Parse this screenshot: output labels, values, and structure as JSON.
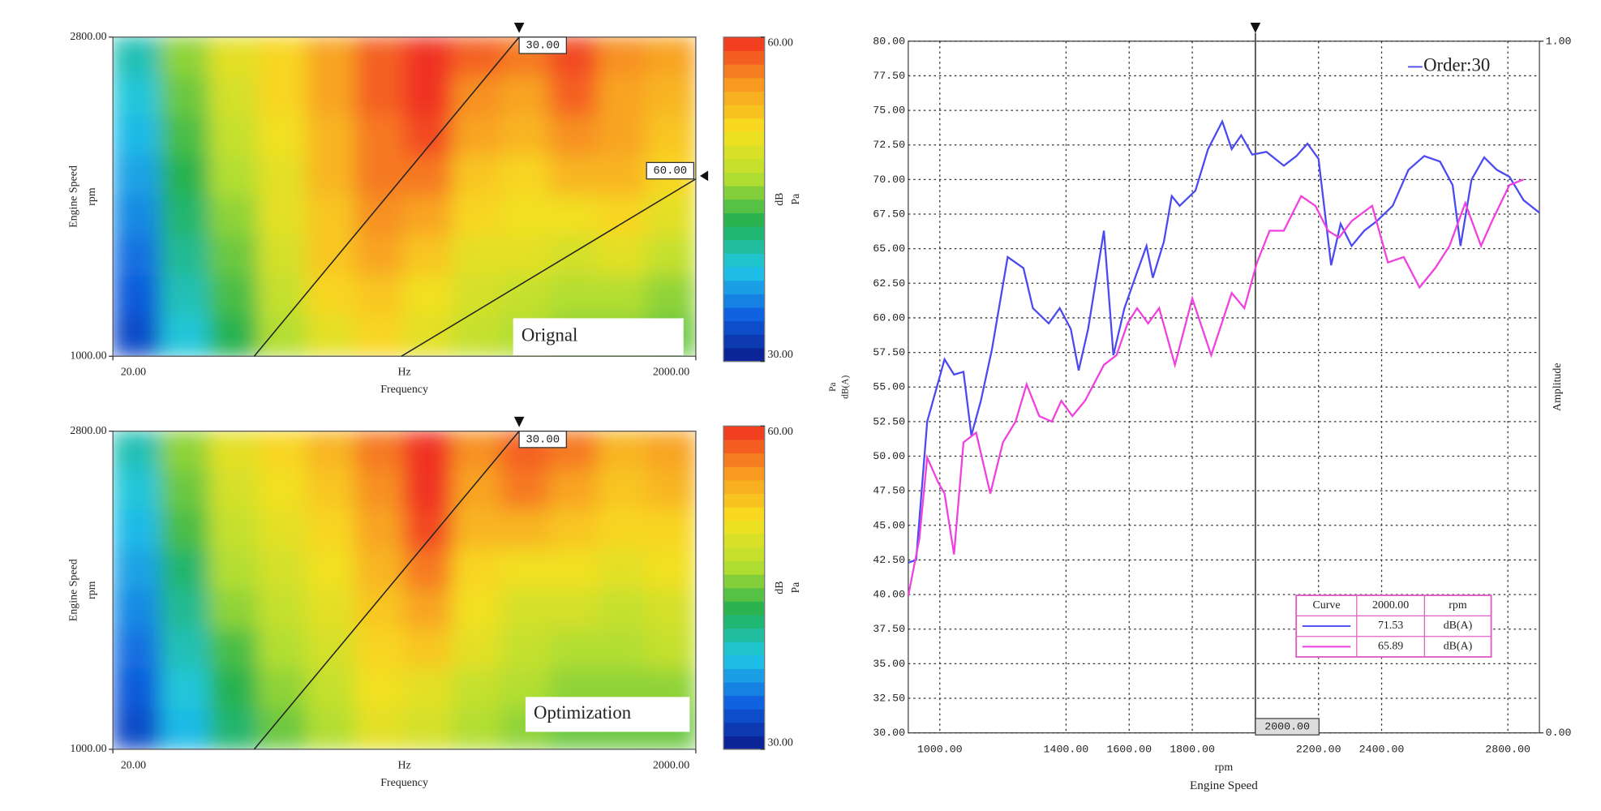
{
  "chart_data": [
    {
      "type": "heatmap",
      "label": "Orignal",
      "xlabel": "Frequency",
      "xunit": "Hz",
      "ylabel": "Engine Speed",
      "yunit": "rpm",
      "xlim": [
        20,
        2000
      ],
      "xticks": [
        {
          "value": 20,
          "label": "20.00"
        },
        {
          "value": 2000,
          "label": "2000.00"
        }
      ],
      "ylim": [
        1000,
        2800
      ],
      "yticks": [
        {
          "value": 1000,
          "label": "1000.00"
        },
        {
          "value": 2800,
          "label": "2800.00"
        }
      ],
      "zlim": [
        30,
        60
      ],
      "zticks": [
        {
          "value": 30,
          "label": "30.00"
        },
        {
          "value": 60,
          "label": "60.00"
        }
      ],
      "zlabel": "dB",
      "zunit": "Pa",
      "colormap": [
        "#0a1a8c",
        "#1060e0",
        "#20c8e8",
        "#20b050",
        "#b8e030",
        "#f8e020",
        "#f89820",
        "#f03020"
      ],
      "orders": [
        {
          "value": 30,
          "label": "30.00"
        },
        {
          "value": 60,
          "label": "60.00"
        }
      ],
      "z": [
        [
          40,
          46,
          50,
          52,
          55,
          58,
          60,
          58,
          57,
          59,
          56,
          55
        ],
        [
          39,
          45,
          49,
          52,
          55,
          58,
          60,
          56,
          55,
          58,
          55,
          54
        ],
        [
          38,
          44,
          48,
          51,
          54,
          57,
          59,
          55,
          54,
          56,
          55,
          53
        ],
        [
          37,
          43,
          47,
          50,
          54,
          57,
          57,
          53,
          52,
          54,
          54,
          52
        ],
        [
          36,
          42,
          46,
          50,
          53,
          56,
          55,
          52,
          51,
          51,
          52,
          50
        ],
        [
          35,
          41,
          45,
          49,
          53,
          55,
          53,
          50,
          50,
          49,
          50,
          48
        ],
        [
          34,
          40,
          44,
          48,
          52,
          53,
          51,
          49,
          48,
          47,
          47,
          46
        ],
        [
          33,
          39,
          43,
          47,
          50,
          52,
          50,
          48,
          47,
          46,
          46,
          45
        ]
      ]
    },
    {
      "type": "heatmap",
      "label": "Optimization",
      "xlabel": "Frequency",
      "xunit": "Hz",
      "ylabel": "Engine Speed",
      "yunit": "rpm",
      "xlim": [
        20,
        2000
      ],
      "xticks": [
        {
          "value": 20,
          "label": "20.00"
        },
        {
          "value": 2000,
          "label": "2000.00"
        }
      ],
      "ylim": [
        1000,
        2800
      ],
      "yticks": [
        {
          "value": 1000,
          "label": "1000.00"
        },
        {
          "value": 2800,
          "label": "2800.00"
        }
      ],
      "zlim": [
        30,
        60
      ],
      "zticks": [
        {
          "value": 30,
          "label": "30.00"
        },
        {
          "value": 60,
          "label": "60.00"
        }
      ],
      "zlabel": "dB",
      "zunit": "Pa",
      "colormap": [
        "#0a1a8c",
        "#1060e0",
        "#20c8e8",
        "#20b050",
        "#b8e030",
        "#f8e020",
        "#f89820",
        "#f03020"
      ],
      "orders": [
        {
          "value": 30,
          "label": "30.00"
        }
      ],
      "z": [
        [
          40,
          46,
          50,
          52,
          54,
          57,
          60,
          56,
          58,
          57,
          54,
          55
        ],
        [
          39,
          45,
          49,
          51,
          53,
          56,
          60,
          55,
          57,
          55,
          53,
          54
        ],
        [
          38,
          44,
          48,
          50,
          52,
          55,
          59,
          54,
          54,
          53,
          52,
          52
        ],
        [
          37,
          42,
          47,
          49,
          51,
          54,
          57,
          52,
          51,
          51,
          50,
          51
        ],
        [
          36,
          41,
          46,
          48,
          50,
          53,
          55,
          51,
          49,
          49,
          48,
          49
        ],
        [
          35,
          40,
          44,
          47,
          49,
          52,
          53,
          50,
          48,
          47,
          47,
          48
        ],
        [
          34,
          39,
          43,
          46,
          48,
          51,
          50,
          48,
          47,
          46,
          46,
          46
        ],
        [
          33,
          38,
          42,
          45,
          47,
          50,
          49,
          47,
          46,
          45,
          45,
          45
        ]
      ]
    },
    {
      "type": "line",
      "xlabel": "Engine Speed",
      "xunit": "rpm",
      "ylabel": "dB(A)",
      "yunit": "Pa",
      "y2label": "Amplitude",
      "xlim": [
        900,
        2900
      ],
      "xticks": [
        {
          "value": 1000,
          "label": "1000.00"
        },
        {
          "value": 1400,
          "label": "1400.00"
        },
        {
          "value": 1600,
          "label": "1600.00"
        },
        {
          "value": 1800,
          "label": "1800.00"
        },
        {
          "value": 2200,
          "label": "2200.00"
        },
        {
          "value": 2400,
          "label": "2400.00"
        },
        {
          "value": 2800,
          "label": "2800.00"
        }
      ],
      "ylim": [
        30,
        80
      ],
      "yticks": [
        {
          "value": 30,
          "label": "30.00"
        },
        {
          "value": 32.5,
          "label": "32.50"
        },
        {
          "value": 35,
          "label": "35.00"
        },
        {
          "value": 37.5,
          "label": "37.50"
        },
        {
          "value": 40,
          "label": "40.00"
        },
        {
          "value": 42.5,
          "label": "42.50"
        },
        {
          "value": 45,
          "label": "45.00"
        },
        {
          "value": 47.5,
          "label": "47.50"
        },
        {
          "value": 50,
          "label": "50.00"
        },
        {
          "value": 52.5,
          "label": "52.50"
        },
        {
          "value": 55,
          "label": "55.00"
        },
        {
          "value": 57.5,
          "label": "57.50"
        },
        {
          "value": 60,
          "label": "60.00"
        },
        {
          "value": 62.5,
          "label": "62.50"
        },
        {
          "value": 65,
          "label": "65.00"
        },
        {
          "value": 67.5,
          "label": "67.50"
        },
        {
          "value": 70,
          "label": "70.00"
        },
        {
          "value": 72.5,
          "label": "72.50"
        },
        {
          "value": 75,
          "label": "75.00"
        },
        {
          "value": 77.5,
          "label": "77.50"
        },
        {
          "value": 80,
          "label": "80.00"
        }
      ],
      "y2lim": [
        0,
        1
      ],
      "y2ticks": [
        {
          "value": 0,
          "label": "0.00"
        },
        {
          "value": 1,
          "label": "1.00"
        }
      ],
      "grid": true,
      "cursor": {
        "value": 2000,
        "label": "2000.00"
      },
      "cursor_table": {
        "header": [
          "Curve",
          "2000.00",
          "rpm"
        ],
        "rows": [
          [
            "71.53",
            "dB(A)"
          ],
          [
            "65.89",
            "dB(A)"
          ]
        ]
      },
      "series": [
        {
          "name": "Order:30",
          "color": "#4a4af0",
          "x": [
            900,
            925,
            960,
            1015,
            1045,
            1075,
            1100,
            1130,
            1165,
            1215,
            1265,
            1295,
            1345,
            1380,
            1415,
            1440,
            1470,
            1520,
            1550,
            1585,
            1625,
            1655,
            1675,
            1710,
            1735,
            1760,
            1810,
            1850,
            1895,
            1925,
            1955,
            1990,
            2035,
            2090,
            2130,
            2165,
            2200,
            2240,
            2270,
            2305,
            2345,
            2385,
            2435,
            2485,
            2535,
            2585,
            2625,
            2650,
            2685,
            2725,
            2765,
            2805,
            2850,
            2900
          ],
          "values": [
            42.3,
            42.5,
            52.5,
            57,
            55.9,
            56.1,
            51.5,
            54,
            57.7,
            64.4,
            63.6,
            60.7,
            59.6,
            60.7,
            59.2,
            56.2,
            59.2,
            66.3,
            57.3,
            60.7,
            63.3,
            65.2,
            62.9,
            65.5,
            68.8,
            68.1,
            69.2,
            72.2,
            74.2,
            72.2,
            73.2,
            71.8,
            72,
            71,
            71.7,
            72.6,
            71.5,
            63.8,
            66.8,
            65.2,
            66.3,
            67,
            68.1,
            70.7,
            71.7,
            71.3,
            69.6,
            65.2,
            70,
            71.6,
            70.7,
            70.2,
            68.5,
            67.6
          ]
        },
        {
          "color": "#f040e0",
          "x": [
            900,
            935,
            960,
            995,
            1015,
            1045,
            1075,
            1115,
            1160,
            1200,
            1240,
            1275,
            1315,
            1355,
            1385,
            1420,
            1460,
            1520,
            1560,
            1595,
            1625,
            1660,
            1695,
            1745,
            1800,
            1860,
            1925,
            1965,
            2005,
            2045,
            2090,
            2145,
            2190,
            2230,
            2265,
            2305,
            2370,
            2420,
            2470,
            2520,
            2570,
            2615,
            2665,
            2715,
            2750,
            2805,
            2850
          ],
          "values": [
            39.9,
            44,
            49.9,
            48.1,
            47.3,
            42.9,
            51,
            51.7,
            47.3,
            51,
            52.5,
            55.2,
            52.9,
            52.5,
            54,
            52.9,
            54,
            56.6,
            57.3,
            59.6,
            60.7,
            59.6,
            60.7,
            56.6,
            61.4,
            57.3,
            61.8,
            60.7,
            64,
            66.3,
            66.3,
            68.8,
            68.1,
            66.3,
            65.8,
            67,
            68.1,
            64,
            64.4,
            62.2,
            63.6,
            65.2,
            68.3,
            65.2,
            67,
            69.6,
            70
          ]
        }
      ]
    }
  ]
}
